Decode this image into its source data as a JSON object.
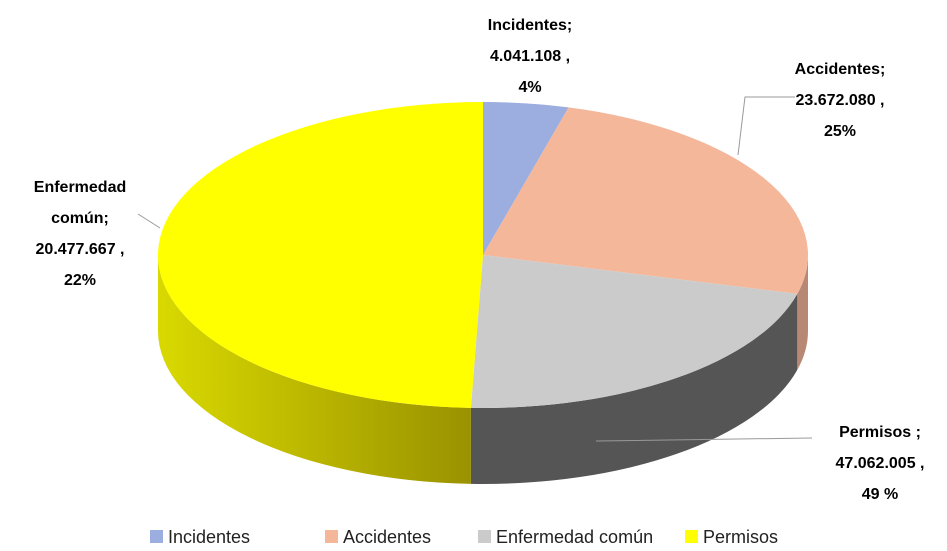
{
  "chart_data": {
    "type": "pie3d",
    "categories": [
      "Incidentes",
      "Accidentes",
      "Enfermedad común",
      "Permisos"
    ],
    "values": [
      4041108,
      23672080,
      20477667,
      47062005
    ],
    "colors": [
      "#9caee0",
      "#f4b79a",
      "#cbcbcb",
      "#ffff00"
    ],
    "data_labels": [
      {
        "name": [
          "Incidentes;"
        ],
        "value": "4.041.108 ,",
        "percent": "4%"
      },
      {
        "name": [
          "Accidentes;"
        ],
        "value": "23.672.080 ,",
        "percent": "25%"
      },
      {
        "name": [
          "Enfermedad",
          "común;"
        ],
        "value": "20.477.667 ,",
        "percent": "22%"
      },
      {
        "name": [
          "Permisos ;"
        ],
        "value": "47.062.005 ,",
        "percent": "49 %"
      }
    ],
    "percents": [
      4,
      25,
      22,
      49
    ],
    "legend": "bottom"
  }
}
